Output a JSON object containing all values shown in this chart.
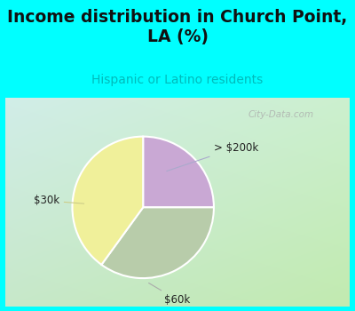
{
  "title": "Income distribution in Church Point,\nLA (%)",
  "subtitle": "Hispanic or Latino residents",
  "title_color": "#111111",
  "subtitle_color": "#00bbbb",
  "header_bg": "#00ffff",
  "chart_bg": "#c8e8d8",
  "border_color": "#00ffff",
  "slices": [
    {
      "label": "> $200k",
      "value": 25,
      "color": "#c9a8d4"
    },
    {
      "label": "$60k",
      "value": 35,
      "color": "#b8ccaa"
    },
    {
      "label": "$30k",
      "value": 40,
      "color": "#f0f09a"
    }
  ],
  "watermark": "City-Data.com",
  "figsize": [
    4.0,
    3.5
  ],
  "dpi": 100
}
